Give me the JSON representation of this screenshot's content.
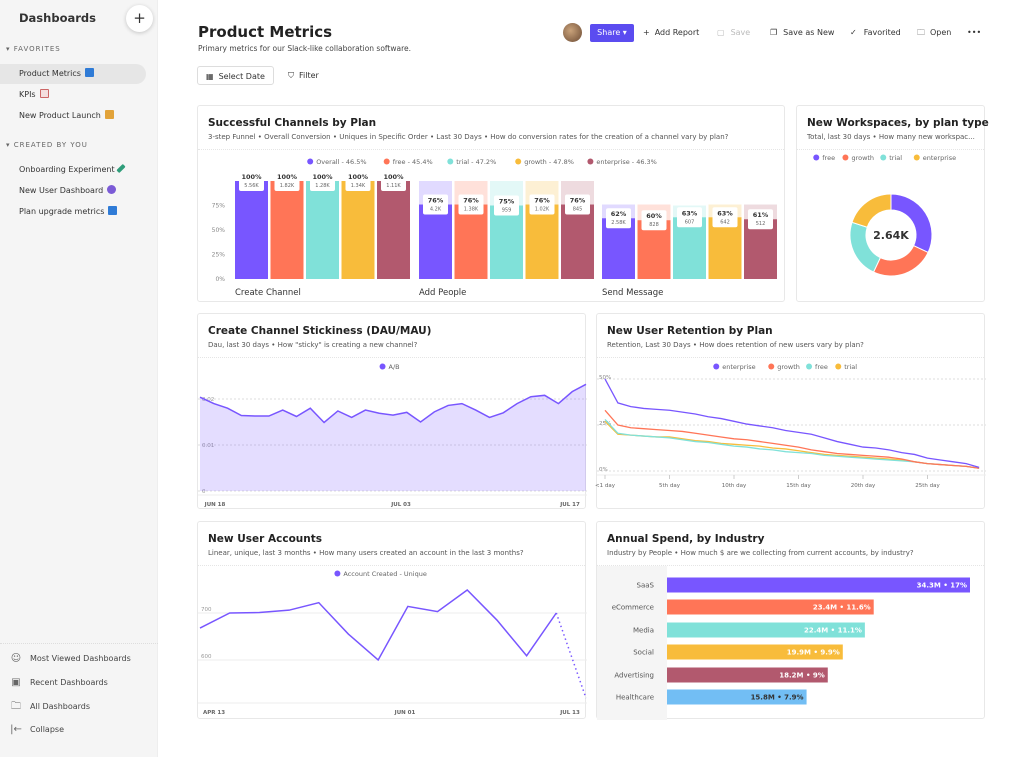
{
  "sidebar": {
    "title": "Dashboards",
    "add_label": "+",
    "favorites_label": "FAVORITES",
    "favorites": [
      {
        "label": "Product Metrics",
        "icon": "blue-square-emoji",
        "color": "#2f7bd6"
      },
      {
        "label": "KPIs",
        "icon": "chart-emoji",
        "color": "#f4dede"
      },
      {
        "label": "New Product Launch",
        "icon": "collision-emoji",
        "color": "#e2a33a"
      }
    ],
    "created_label": "CREATED BY YOU",
    "created": [
      {
        "label": "Onboarding Experiment",
        "icon": "test-tube-emoji",
        "color": "#2f9d7a"
      },
      {
        "label": "New User Dashboard",
        "icon": "crystal-ball-emoji",
        "color": "#7b5bd6"
      },
      {
        "label": "Plan upgrade metrics",
        "icon": "exclamation-emoji",
        "color": "#2f7bd6"
      }
    ],
    "bottom": [
      {
        "label": "Most Viewed Dashboards",
        "icon": "smiley-icon",
        "glyph": "☺"
      },
      {
        "label": "Recent Dashboards",
        "icon": "calendar-icon",
        "glyph": "▣"
      },
      {
        "label": "All Dashboards",
        "icon": "folder-icon",
        "glyph": "🗀"
      },
      {
        "label": "Collapse",
        "icon": "collapse-icon",
        "glyph": "|←"
      }
    ]
  },
  "header": {
    "title": "Product Metrics",
    "subtitle": "Primary metrics for our Slack-like collaboration software.",
    "share": "Share ▾",
    "add_report": "Add Report",
    "save": "Save",
    "save_as_new": "Save as New",
    "favorited": "Favorited",
    "open": "Open",
    "more": "•••",
    "select_date": "Select Date",
    "filter": "Filter"
  },
  "colors": {
    "accent": "#5b4cf0",
    "purple": "#7856ff",
    "orange": "#ff7557",
    "teal": "#80e1d9",
    "yellow": "#f8bc3b",
    "maroon": "#b2596e",
    "blue": "#72bef4"
  },
  "chart_data": [
    {
      "type": "bar",
      "title": "Successful Channels by Plan",
      "subtitle": "3-step Funnel • Overall Conversion • Uniques in Specific Order • Last 30 Days • How do conversion rates for the creation of a channel vary by plan?",
      "categories": [
        "Create Channel",
        "Add People",
        "Send Message"
      ],
      "yticks": [
        "0%",
        "25%",
        "50%",
        "75%"
      ],
      "ylim": [
        0,
        100
      ],
      "series": [
        {
          "name": "Overall",
          "legend": "Overall - 46.5%",
          "color": "#7856ff",
          "values": [
            100,
            76,
            62
          ],
          "labels": [
            "5.56K",
            "4.2K",
            "2.58K"
          ]
        },
        {
          "name": "free",
          "legend": "free - 45.4%",
          "color": "#ff7557",
          "values": [
            100,
            76,
            60
          ],
          "labels": [
            "1.82K",
            "1.38K",
            "828"
          ]
        },
        {
          "name": "trial",
          "legend": "trial - 47.2%",
          "color": "#80e1d9",
          "values": [
            100,
            75,
            63
          ],
          "labels": [
            "1.28K",
            "959",
            "607"
          ]
        },
        {
          "name": "growth",
          "legend": "growth - 47.8%",
          "color": "#f8bc3b",
          "values": [
            100,
            76,
            63
          ],
          "labels": [
            "1.34K",
            "1.02K",
            "642"
          ]
        },
        {
          "name": "enterprise",
          "legend": "enterprise - 46.3%",
          "color": "#b2596e",
          "values": [
            100,
            76,
            61
          ],
          "labels": [
            "1.11K",
            "845",
            "512"
          ]
        }
      ]
    },
    {
      "type": "pie",
      "title": "New Workspaces, by plan type",
      "subtitle": "Total, last 30 days • How many new workspac...",
      "center_label": "2.64K",
      "slices": [
        {
          "name": "free",
          "value": 32,
          "color": "#7856ff"
        },
        {
          "name": "growth",
          "value": 25,
          "color": "#ff7557"
        },
        {
          "name": "trial",
          "value": 23,
          "color": "#80e1d9"
        },
        {
          "name": "enterprise",
          "value": 20,
          "color": "#f8bc3b"
        }
      ]
    },
    {
      "type": "area",
      "title": "Create Channel Stickiness (DAU/MAU)",
      "subtitle": "Dau, last 30 days • How \"sticky\" is creating a new channel?",
      "series": [
        {
          "name": "A/B",
          "color": "#7856ff",
          "values": [
            0.0204,
            0.019,
            0.018,
            0.0164,
            0.0163,
            0.0163,
            0.0176,
            0.0162,
            0.018,
            0.0149,
            0.0174,
            0.016,
            0.0176,
            0.0169,
            0.0165,
            0.0171,
            0.015,
            0.0172,
            0.0186,
            0.019,
            0.0176,
            0.016,
            0.017,
            0.019,
            0.0205,
            0.0208,
            0.019,
            0.0216,
            0.0232
          ]
        }
      ],
      "yticks": [
        "0",
        "0.01",
        "0.02"
      ],
      "ylim": [
        0,
        0.025
      ],
      "xticks": [
        "JUN 18",
        "JUL 03",
        "JUL 17"
      ]
    },
    {
      "type": "line",
      "title": "New User Retention by Plan",
      "subtitle": "Retention, Last 30 Days • How does retention of new users vary by plan?",
      "yticks": [
        "0%",
        "25%",
        "50%"
      ],
      "ylim": [
        0,
        50
      ],
      "xticks": [
        "<1 day",
        "5th day",
        "10th day",
        "15th day",
        "20th day",
        "25th day"
      ],
      "series": [
        {
          "name": "enterprise",
          "color": "#7856ff",
          "values": [
            50,
            37,
            35,
            34,
            33.5,
            33,
            32,
            31,
            29.5,
            28.5,
            27,
            25.5,
            24.5,
            23.5,
            22,
            21,
            20,
            18,
            16,
            14.5,
            13,
            12.5,
            11.5,
            10,
            9,
            7,
            6,
            5,
            4,
            2
          ]
        },
        {
          "name": "growth",
          "color": "#ff7557",
          "values": [
            33,
            25,
            23.5,
            23,
            22.5,
            22,
            21.5,
            20.5,
            19.5,
            18.5,
            17.5,
            17,
            16,
            15,
            14,
            13,
            11.5,
            10.5,
            9.5,
            9,
            8.5,
            8,
            7.5,
            6.5,
            5,
            4,
            3.5,
            3,
            2.5,
            1.5
          ]
        },
        {
          "name": "free",
          "color": "#80e1d9",
          "values": [
            28,
            20.5,
            19.5,
            19,
            18.5,
            18,
            17,
            16,
            15.5,
            14.5,
            13.5,
            13,
            12,
            11.5,
            10.5,
            10,
            9.5,
            8.5,
            8,
            7.5,
            7,
            6.5,
            6,
            5.5,
            5,
            4,
            3.5,
            3,
            2.5,
            1.5
          ]
        },
        {
          "name": "trial",
          "color": "#f8bc3b",
          "values": [
            27,
            20,
            19.5,
            19,
            18.5,
            18.5,
            17.5,
            16.5,
            16,
            15,
            14.5,
            14,
            13.5,
            12.5,
            12,
            11,
            10,
            9,
            8.5,
            8,
            7.5,
            7,
            6.5,
            6,
            5,
            4,
            3.5,
            3,
            2.5,
            1.5
          ]
        }
      ]
    },
    {
      "type": "line",
      "title": "New User Accounts",
      "subtitle": "Linear, unique, last 3 months • How many users created an account in the last 3 months?",
      "yticks": [
        "600",
        "700"
      ],
      "ylim": [
        505,
        780
      ],
      "xticks": [
        "APR 13",
        "JUN 01",
        "JUL 13"
      ],
      "series": [
        {
          "name": "Account Created - Unique",
          "color": "#7856ff",
          "values": [
            668,
            700,
            701,
            706,
            722,
            655,
            600,
            714,
            703,
            749,
            685,
            609,
            700,
            519
          ],
          "last_point_incomplete": true
        }
      ]
    },
    {
      "type": "bar",
      "orientation": "horizontal",
      "title": "Annual Spend, by Industry",
      "subtitle": "Industry by People • How much $ are we collecting from current accounts, by industry?",
      "categories": [
        "SaaS",
        "eCommerce",
        "Media",
        "Social",
        "Advertising",
        "Healthcare"
      ],
      "values": [
        34.3,
        23.4,
        22.4,
        19.9,
        18.2,
        15.8
      ],
      "labels": [
        "34.3M • 17%",
        "23.4M • 11.6%",
        "22.4M • 11.1%",
        "19.9M • 9.9%",
        "18.2M • 9%",
        "15.8M • 7.9%"
      ],
      "colors": [
        "#7856ff",
        "#ff7557",
        "#80e1d9",
        "#f8bc3b",
        "#b2596e",
        "#72bef4"
      ]
    }
  ]
}
